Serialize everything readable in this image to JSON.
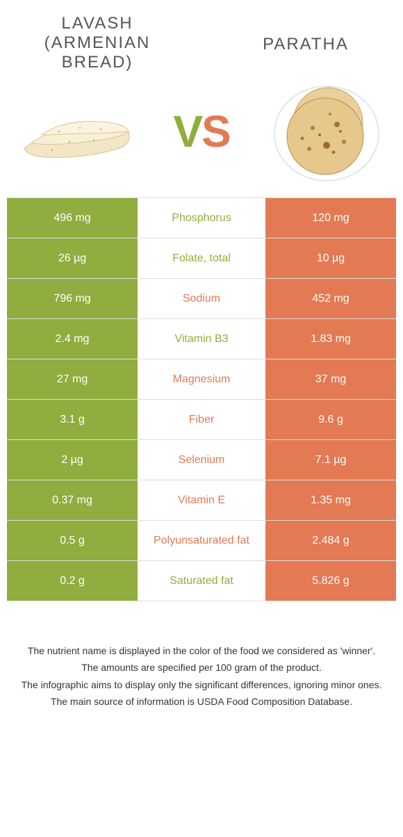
{
  "colors": {
    "green": "#8fae3f",
    "orange": "#e37a53",
    "border": "#dddddd",
    "text": "#333333",
    "title": "#555555",
    "bg": "#ffffff"
  },
  "header": {
    "left_title": "Lavash (Armenian bread)",
    "right_title": "Paratha",
    "vs_v": "V",
    "vs_s": "S"
  },
  "rows": [
    {
      "left": "496 mg",
      "label": "Phosphorus",
      "right": "120 mg",
      "winner": "green"
    },
    {
      "left": "26 µg",
      "label": "Folate, total",
      "right": "10 µg",
      "winner": "green"
    },
    {
      "left": "796 mg",
      "label": "Sodium",
      "right": "452 mg",
      "winner": "orange"
    },
    {
      "left": "2.4 mg",
      "label": "Vitamin B3",
      "right": "1.83 mg",
      "winner": "green"
    },
    {
      "left": "27 mg",
      "label": "Magnesium",
      "right": "37 mg",
      "winner": "orange"
    },
    {
      "left": "3.1 g",
      "label": "Fiber",
      "right": "9.6 g",
      "winner": "orange"
    },
    {
      "left": "2 µg",
      "label": "Selenium",
      "right": "7.1 µg",
      "winner": "orange"
    },
    {
      "left": "0.37 mg",
      "label": "Vitamin E",
      "right": "1.35 mg",
      "winner": "orange"
    },
    {
      "left": "0.5 g",
      "label": "Polyunsaturated fat",
      "right": "2.484 g",
      "winner": "orange"
    },
    {
      "left": "0.2 g",
      "label": "Saturated fat",
      "right": "5.826 g",
      "winner": "green"
    }
  ],
  "footer": [
    "The nutrient name is displayed in the color of the food we considered as 'winner'.",
    "The amounts are specified per 100 gram of the product.",
    "The infographic aims to display only the significant differences, ignoring minor ones.",
    "The main source of information is USDA Food Composition Database."
  ]
}
